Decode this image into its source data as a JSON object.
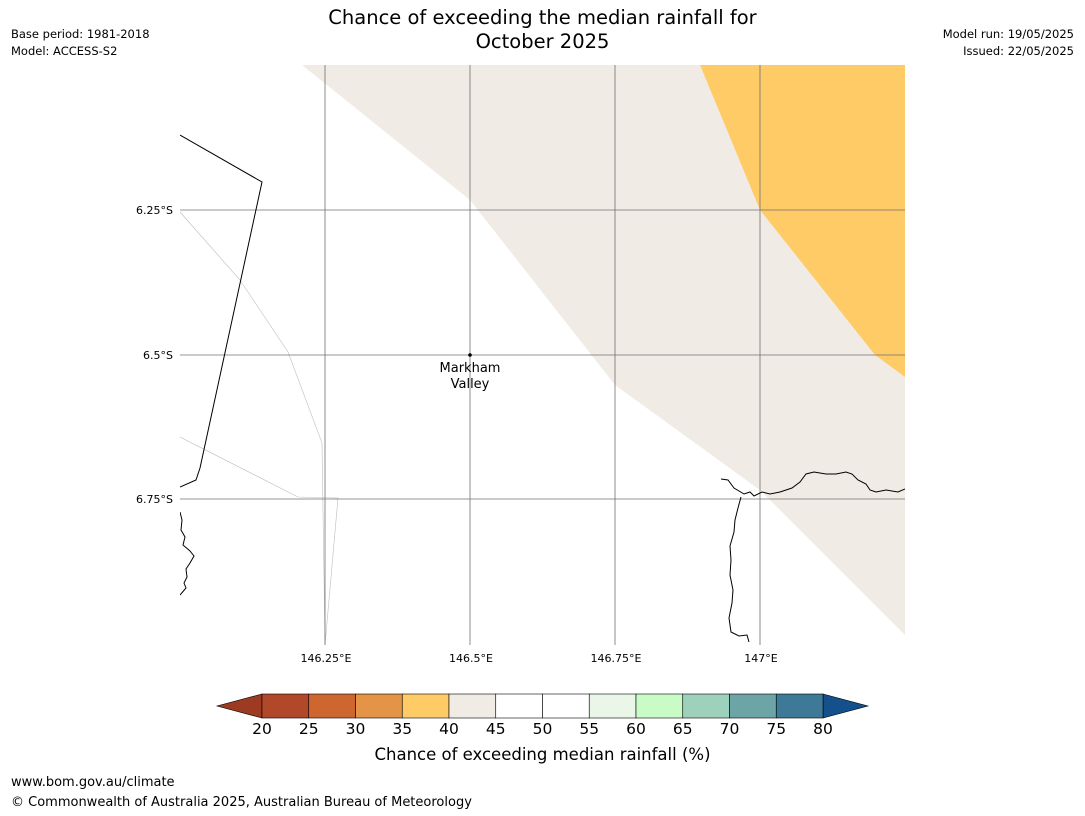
{
  "header": {
    "title_line1": "Chance of exceeding the median rainfall for",
    "title_line2": "October 2025",
    "base_period": "Base period: 1981-2018",
    "model": "Model: ACCESS-S2",
    "model_run": "Model run: 19/05/2025",
    "issued": "Issued: 22/05/2025"
  },
  "map": {
    "lat_labels": [
      "6.25°S",
      "6.5°S",
      "6.75°S"
    ],
    "lon_labels": [
      "146.25°E",
      "146.5°E",
      "146.75°E",
      "147°E"
    ],
    "place_marker": {
      "name_line1": "Markham",
      "name_line2": "Valley"
    },
    "colors": {
      "band_40_45": "#f0ebe5",
      "band_35_40": "#fecb67",
      "gridline": "#707070",
      "coast": "#000000"
    }
  },
  "colorbar": {
    "title": "Chance of exceeding median rainfall (%)",
    "tick_labels": [
      "20",
      "25",
      "30",
      "35",
      "40",
      "45",
      "50",
      "55",
      "60",
      "65",
      "70",
      "75",
      "80"
    ],
    "under_color": "#9d3a22",
    "over_color": "#13508c",
    "colors": [
      "#b1482a",
      "#ce6630",
      "#e39447",
      "#fecb67",
      "#f0ebe5",
      "#ffffff",
      "#ffffff",
      "#e9f6e8",
      "#c9fbc7",
      "#9dd1bb",
      "#6da4a6",
      "#3e7a98"
    ]
  },
  "footer": {
    "url": "www.bom.gov.au/climate",
    "copyright": "© Commonwealth of Australia 2025, Australian Bureau of Meteorology"
  }
}
